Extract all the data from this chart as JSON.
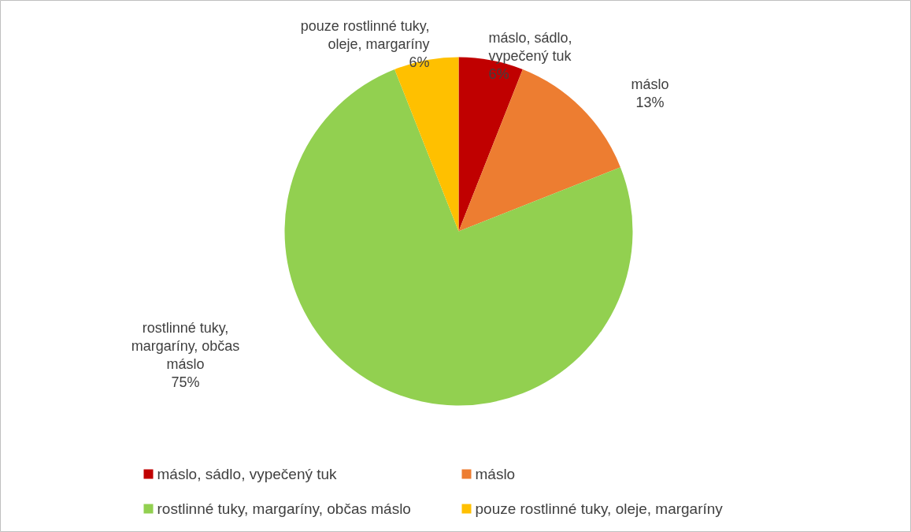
{
  "chart_data": {
    "type": "pie",
    "categories": [
      "máslo, sádlo, vypečený tuk",
      "máslo",
      "rostlinné tuky, margaríny, občas máslo",
      "pouze rostlinné tuky, oleje, margaríny"
    ],
    "values": [
      6,
      13,
      75,
      6
    ],
    "value_labels": [
      "6%",
      "13%",
      "75%",
      "6%"
    ],
    "colors": [
      "#c00000",
      "#ed7d31",
      "#92d050",
      "#ffc000"
    ],
    "legend": "bottom"
  }
}
